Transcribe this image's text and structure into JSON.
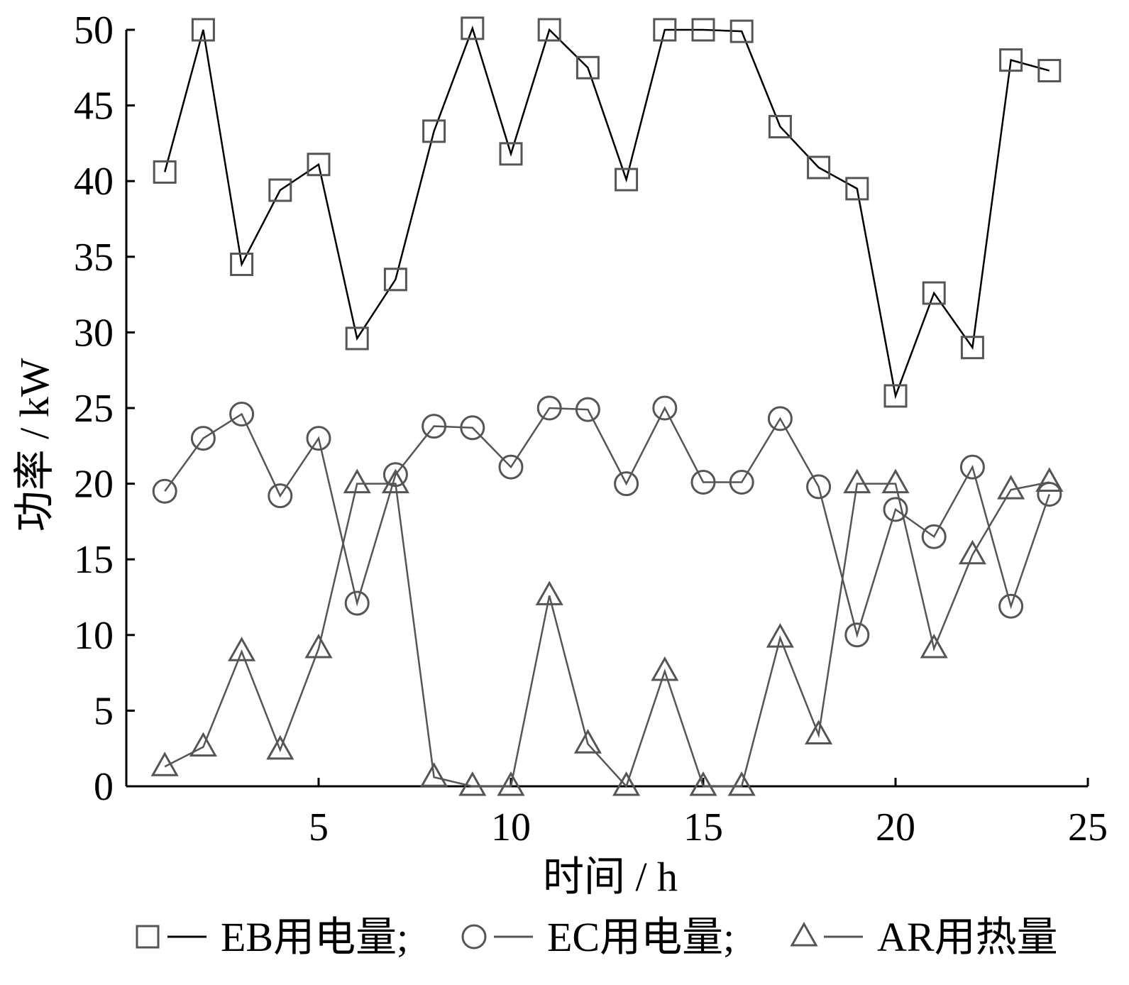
{
  "chart_data": {
    "type": "line",
    "xlabel": "时间 / h",
    "ylabel": "功率 / kW",
    "xlim": [
      0,
      25
    ],
    "ylim": [
      0,
      50
    ],
    "x_ticks": [
      5,
      10,
      15,
      20,
      25
    ],
    "y_ticks": [
      0,
      5,
      10,
      15,
      20,
      25,
      30,
      35,
      40,
      45,
      50
    ],
    "x": [
      1,
      2,
      3,
      4,
      5,
      6,
      7,
      8,
      9,
      10,
      11,
      12,
      13,
      14,
      15,
      16,
      17,
      18,
      19,
      20,
      21,
      22,
      23,
      24
    ],
    "legend_position": "bottom",
    "series": [
      {
        "name": "EB用电量;",
        "marker": "square",
        "line_color": "#000000",
        "marker_color": "#555555",
        "values": [
          40.6,
          50.0,
          34.5,
          39.4,
          41.1,
          29.6,
          33.5,
          43.3,
          50.1,
          41.8,
          50.0,
          47.5,
          40.1,
          50.0,
          50.0,
          49.9,
          43.6,
          40.9,
          39.5,
          25.8,
          32.6,
          29.0,
          48.0,
          47.3
        ]
      },
      {
        "name": "EC用电量;",
        "marker": "circle",
        "line_color": "#555555",
        "marker_color": "#555555",
        "values": [
          19.5,
          23.0,
          24.6,
          19.2,
          23.0,
          12.1,
          20.6,
          23.8,
          23.7,
          21.1,
          25.0,
          24.9,
          20.0,
          25.0,
          20.1,
          20.1,
          24.3,
          19.8,
          10.0,
          18.3,
          16.5,
          21.1,
          11.9,
          19.3
        ]
      },
      {
        "name": "AR用热量",
        "marker": "triangle",
        "line_color": "#555555",
        "marker_color": "#555555",
        "values": [
          1.3,
          2.6,
          8.9,
          2.4,
          9.1,
          20.0,
          20.0,
          0.6,
          0.0,
          0.0,
          12.6,
          2.8,
          0.0,
          7.6,
          0.0,
          0.0,
          9.8,
          3.4,
          20.0,
          20.0,
          9.1,
          15.3,
          19.6,
          20.1
        ]
      }
    ]
  }
}
